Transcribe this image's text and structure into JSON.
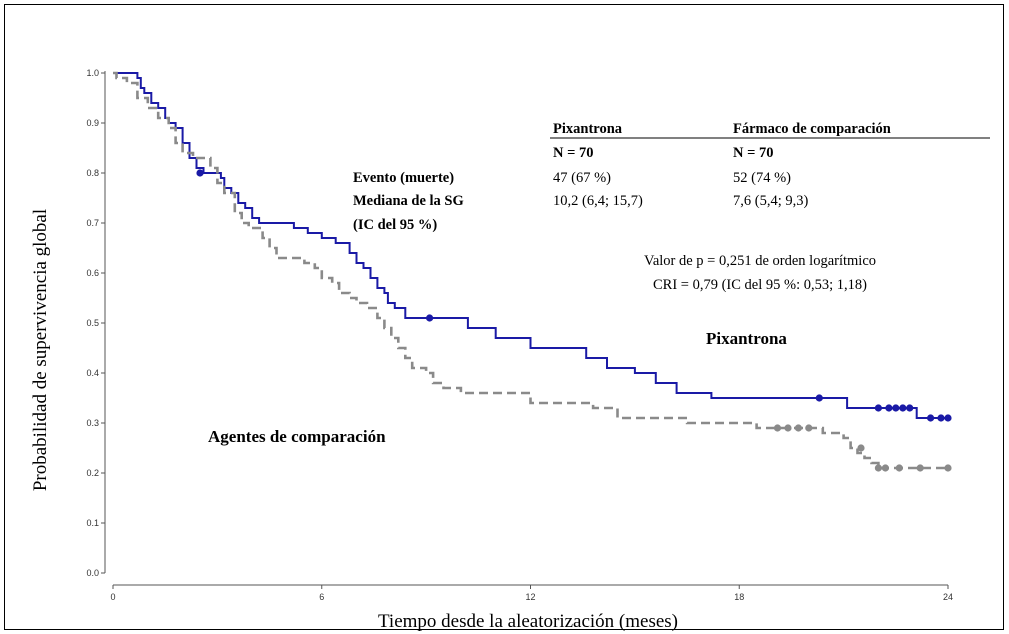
{
  "chart_data": {
    "type": "line",
    "xlabel": "Tiempo desde la aleatorización (meses)",
    "ylabel": "Probabilidad de supervivencia global",
    "xlim": [
      0,
      24
    ],
    "ylim": [
      0,
      1
    ],
    "x_ticks": [
      "0",
      "6",
      "12",
      "18",
      "24"
    ],
    "y_ticks": [
      "0.0",
      "0.1",
      "0.2",
      "0.3",
      "0.4",
      "0.5",
      "0.6",
      "0.7",
      "0.8",
      "0.9",
      "1.0"
    ],
    "colors": {
      "pixantrona": "#1a1aa6",
      "comparacion": "#8a8a8a"
    },
    "series": [
      {
        "name": "Pixantrona",
        "style": "solid",
        "points": [
          [
            0,
            1.0
          ],
          [
            0.5,
            1.0
          ],
          [
            0.7,
            0.99
          ],
          [
            0.8,
            0.97
          ],
          [
            0.9,
            0.96
          ],
          [
            1.1,
            0.94
          ],
          [
            1.3,
            0.93
          ],
          [
            1.5,
            0.91
          ],
          [
            1.6,
            0.9
          ],
          [
            1.8,
            0.89
          ],
          [
            2.0,
            0.86
          ],
          [
            2.2,
            0.83
          ],
          [
            2.4,
            0.81
          ],
          [
            2.6,
            0.8
          ],
          [
            2.9,
            0.8
          ],
          [
            3.1,
            0.79
          ],
          [
            3.2,
            0.77
          ],
          [
            3.4,
            0.76
          ],
          [
            3.6,
            0.74
          ],
          [
            3.8,
            0.73
          ],
          [
            4.0,
            0.71
          ],
          [
            4.2,
            0.7
          ],
          [
            5.0,
            0.7
          ],
          [
            5.2,
            0.69
          ],
          [
            5.6,
            0.68
          ],
          [
            6.0,
            0.67
          ],
          [
            6.4,
            0.66
          ],
          [
            6.8,
            0.64
          ],
          [
            7.0,
            0.62
          ],
          [
            7.2,
            0.61
          ],
          [
            7.4,
            0.59
          ],
          [
            7.6,
            0.57
          ],
          [
            7.8,
            0.56
          ],
          [
            7.9,
            0.54
          ],
          [
            8.1,
            0.53
          ],
          [
            8.4,
            0.51
          ],
          [
            9.0,
            0.51
          ],
          [
            10.0,
            0.51
          ],
          [
            10.2,
            0.49
          ],
          [
            10.9,
            0.49
          ],
          [
            11.0,
            0.47
          ],
          [
            11.9,
            0.47
          ],
          [
            12.0,
            0.45
          ],
          [
            13.4,
            0.45
          ],
          [
            13.6,
            0.43
          ],
          [
            14.0,
            0.43
          ],
          [
            14.2,
            0.41
          ],
          [
            14.8,
            0.41
          ],
          [
            15.0,
            0.4
          ],
          [
            15.4,
            0.4
          ],
          [
            15.6,
            0.38
          ],
          [
            16.0,
            0.38
          ],
          [
            16.2,
            0.36
          ],
          [
            17.0,
            0.36
          ],
          [
            17.2,
            0.35
          ],
          [
            20.0,
            0.35
          ],
          [
            21.0,
            0.35
          ],
          [
            21.1,
            0.33
          ],
          [
            23.0,
            0.33
          ],
          [
            23.1,
            0.31
          ],
          [
            24.0,
            0.31
          ]
        ],
        "censored": [
          [
            2.5,
            0.8
          ],
          [
            9.1,
            0.51
          ],
          [
            20.3,
            0.35
          ],
          [
            22.0,
            0.33
          ],
          [
            22.3,
            0.33
          ],
          [
            22.5,
            0.33
          ],
          [
            22.7,
            0.33
          ],
          [
            22.9,
            0.33
          ],
          [
            23.5,
            0.31
          ],
          [
            23.8,
            0.31
          ],
          [
            24.0,
            0.31
          ]
        ]
      },
      {
        "name": "Agentes de comparación",
        "style": "dashed",
        "points": [
          [
            0,
            1.0
          ],
          [
            0.1,
            0.99
          ],
          [
            0.4,
            0.98
          ],
          [
            0.7,
            0.95
          ],
          [
            1.0,
            0.93
          ],
          [
            1.3,
            0.91
          ],
          [
            1.6,
            0.89
          ],
          [
            1.8,
            0.86
          ],
          [
            2.0,
            0.84
          ],
          [
            2.3,
            0.83
          ],
          [
            2.8,
            0.81
          ],
          [
            3.0,
            0.78
          ],
          [
            3.2,
            0.76
          ],
          [
            3.5,
            0.72
          ],
          [
            3.7,
            0.7
          ],
          [
            3.9,
            0.69
          ],
          [
            4.3,
            0.67
          ],
          [
            4.5,
            0.65
          ],
          [
            4.7,
            0.63
          ],
          [
            5.5,
            0.62
          ],
          [
            5.8,
            0.61
          ],
          [
            6.0,
            0.59
          ],
          [
            6.3,
            0.58
          ],
          [
            6.5,
            0.56
          ],
          [
            6.8,
            0.55
          ],
          [
            7.0,
            0.54
          ],
          [
            7.3,
            0.53
          ],
          [
            7.6,
            0.51
          ],
          [
            7.8,
            0.49
          ],
          [
            8.0,
            0.47
          ],
          [
            8.2,
            0.45
          ],
          [
            8.4,
            0.43
          ],
          [
            8.6,
            0.41
          ],
          [
            9.0,
            0.4
          ],
          [
            9.2,
            0.38
          ],
          [
            9.5,
            0.37
          ],
          [
            10.0,
            0.36
          ],
          [
            11.8,
            0.36
          ],
          [
            12.0,
            0.34
          ],
          [
            13.6,
            0.34
          ],
          [
            13.8,
            0.33
          ],
          [
            14.5,
            0.31
          ],
          [
            16.3,
            0.31
          ],
          [
            16.5,
            0.3
          ],
          [
            18.3,
            0.3
          ],
          [
            18.5,
            0.29
          ],
          [
            19.6,
            0.29
          ],
          [
            20.2,
            0.29
          ],
          [
            20.4,
            0.28
          ],
          [
            20.8,
            0.28
          ],
          [
            21.0,
            0.27
          ],
          [
            21.2,
            0.25
          ],
          [
            21.4,
            0.24
          ],
          [
            21.6,
            0.23
          ],
          [
            21.8,
            0.22
          ],
          [
            22.0,
            0.21
          ],
          [
            24.0,
            0.21
          ]
        ],
        "censored": [
          [
            19.1,
            0.29
          ],
          [
            19.4,
            0.29
          ],
          [
            19.7,
            0.29
          ],
          [
            20.0,
            0.29
          ],
          [
            21.5,
            0.25
          ],
          [
            22.0,
            0.21
          ],
          [
            22.2,
            0.21
          ],
          [
            22.6,
            0.21
          ],
          [
            23.2,
            0.21
          ],
          [
            24.0,
            0.21
          ]
        ]
      }
    ],
    "table": {
      "headers": [
        "Pixantrona",
        "Fármaco de comparación"
      ],
      "n_row": [
        "N = 70",
        "N = 70"
      ],
      "rows": [
        {
          "label": "Evento (muerte)",
          "values": [
            "47 (67 %)",
            "52 (74 %)"
          ]
        },
        {
          "label": "Mediana de la SG",
          "label2": "(IC del 95 %)",
          "values": [
            "10,2 (6,4; 15,7)",
            "7,6 (5,4; 9,3)"
          ]
        }
      ]
    },
    "annotations": {
      "p_value": "Valor de p = 0,251 de orden logarítmico",
      "hr": "CRI = 0,79 (IC del 95 %: 0,53; 1,18)",
      "label_pixantrona": "Pixantrona",
      "label_comparacion": "Agentes de comparación"
    }
  }
}
